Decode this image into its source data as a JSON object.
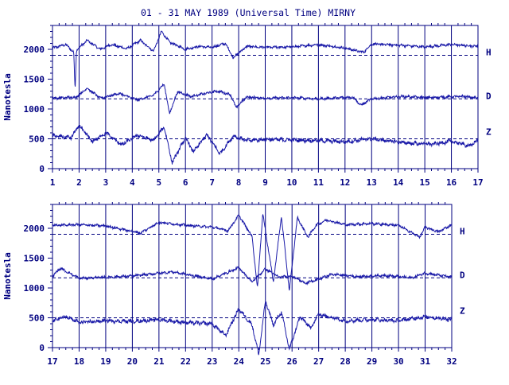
{
  "title": "01 - 31 MAY 1989 (Universal Time) MIRNY",
  "colors": {
    "ink": "#000080",
    "trace": "#1a1aa8",
    "background": "#ffffff"
  },
  "chart_data": [
    {
      "type": "line",
      "panel": "top",
      "ylabel": "Nanotesla",
      "xlabel": "",
      "x_ticks": [
        "1",
        "2",
        "3",
        "4",
        "5",
        "6",
        "7",
        "8",
        "9",
        "10",
        "11",
        "12",
        "13",
        "14",
        "15",
        "16",
        "17"
      ],
      "xlim": [
        1,
        17
      ],
      "y_ticks": [
        "0",
        "500",
        "1000",
        "1500",
        "2000"
      ],
      "ylim": [
        0,
        2400
      ],
      "grid": "vertical lines at each day",
      "series": [
        {
          "name": "H",
          "baseline": 1900,
          "segments": [
            [
              1,
              2020
            ],
            [
              1.5,
              2080
            ],
            [
              1.8,
              1950
            ],
            [
              1.85,
              1300
            ],
            [
              1.9,
              1980
            ],
            [
              2.3,
              2150
            ],
            [
              2.8,
              2000
            ],
            [
              3.2,
              2080
            ],
            [
              3.8,
              2010
            ],
            [
              4.3,
              2150
            ],
            [
              4.8,
              1970
            ],
            [
              5.1,
              2300
            ],
            [
              5.4,
              2120
            ],
            [
              6,
              2000
            ],
            [
              6.5,
              2050
            ],
            [
              7,
              2030
            ],
            [
              7.5,
              2100
            ],
            [
              7.8,
              1860
            ],
            [
              8.3,
              2050
            ],
            [
              9,
              2030
            ],
            [
              10,
              2040
            ],
            [
              11,
              2080
            ],
            [
              12,
              2020
            ],
            [
              12.7,
              1950
            ],
            [
              13,
              2090
            ],
            [
              14,
              2070
            ],
            [
              15,
              2040
            ],
            [
              16,
              2080
            ],
            [
              17,
              2050
            ]
          ]
        },
        {
          "name": "D",
          "baseline": 1170,
          "segments": [
            [
              1,
              1180
            ],
            [
              1.9,
              1200
            ],
            [
              2.3,
              1350
            ],
            [
              2.8,
              1180
            ],
            [
              3.5,
              1260
            ],
            [
              4.2,
              1150
            ],
            [
              4.8,
              1230
            ],
            [
              5.2,
              1420
            ],
            [
              5.4,
              920
            ],
            [
              5.7,
              1290
            ],
            [
              6.2,
              1210
            ],
            [
              7.2,
              1300
            ],
            [
              7.7,
              1240
            ],
            [
              7.9,
              1020
            ],
            [
              8.3,
              1200
            ],
            [
              9,
              1180
            ],
            [
              10,
              1190
            ],
            [
              11,
              1170
            ],
            [
              12.3,
              1200
            ],
            [
              12.6,
              1060
            ],
            [
              13,
              1170
            ],
            [
              14.2,
              1210
            ],
            [
              15,
              1190
            ],
            [
              16.5,
              1210
            ],
            [
              17,
              1180
            ]
          ]
        },
        {
          "name": "Z",
          "baseline": 500,
          "segments": [
            [
              1,
              550
            ],
            [
              1.7,
              520
            ],
            [
              2,
              720
            ],
            [
              2.5,
              450
            ],
            [
              3,
              600
            ],
            [
              3.6,
              400
            ],
            [
              4.2,
              560
            ],
            [
              4.8,
              470
            ],
            [
              5.2,
              700
            ],
            [
              5.5,
              100
            ],
            [
              6,
              520
            ],
            [
              6.3,
              280
            ],
            [
              6.8,
              570
            ],
            [
              7.3,
              250
            ],
            [
              7.8,
              550
            ],
            [
              8.3,
              470
            ],
            [
              9,
              490
            ],
            [
              10,
              480
            ],
            [
              11,
              470
            ],
            [
              12,
              450
            ],
            [
              13,
              500
            ],
            [
              14.3,
              430
            ],
            [
              15.3,
              410
            ],
            [
              16,
              460
            ],
            [
              16.7,
              380
            ],
            [
              17,
              480
            ]
          ]
        }
      ]
    },
    {
      "type": "line",
      "panel": "bottom",
      "ylabel": "Nanotesla",
      "xlabel": "",
      "x_ticks": [
        "17",
        "18",
        "19",
        "20",
        "21",
        "22",
        "23",
        "24",
        "25",
        "26",
        "27",
        "28",
        "29",
        "30",
        "31",
        "32"
      ],
      "xlim": [
        17,
        32
      ],
      "y_ticks": [
        "0",
        "500",
        "1000",
        "1500",
        "2000"
      ],
      "ylim": [
        0,
        2400
      ],
      "grid": "vertical lines at each day",
      "series": [
        {
          "name": "H",
          "baseline": 1900,
          "segments": [
            [
              17,
              2050
            ],
            [
              18,
              2060
            ],
            [
              19,
              2040
            ],
            [
              20.3,
              1920
            ],
            [
              21,
              2100
            ],
            [
              22,
              2050
            ],
            [
              23,
              2020
            ],
            [
              23.6,
              1960
            ],
            [
              24,
              2220
            ],
            [
              24.5,
              1860
            ],
            [
              24.7,
              1000
            ],
            [
              24.9,
              2250
            ],
            [
              25.3,
              1100
            ],
            [
              25.6,
              2200
            ],
            [
              25.9,
              950
            ],
            [
              26.2,
              2180
            ],
            [
              26.6,
              1850
            ],
            [
              26.9,
              2050
            ],
            [
              27.3,
              2140
            ],
            [
              28,
              2060
            ],
            [
              29,
              2080
            ],
            [
              30,
              2050
            ],
            [
              30.8,
              1850
            ],
            [
              31,
              2020
            ],
            [
              31.5,
              1940
            ],
            [
              32,
              2060
            ]
          ]
        },
        {
          "name": "D",
          "baseline": 1170,
          "segments": [
            [
              17,
              1200
            ],
            [
              17.3,
              1330
            ],
            [
              18,
              1160
            ],
            [
              19,
              1180
            ],
            [
              20,
              1200
            ],
            [
              21.5,
              1270
            ],
            [
              22.5,
              1190
            ],
            [
              23,
              1150
            ],
            [
              24,
              1340
            ],
            [
              24.5,
              1100
            ],
            [
              25,
              1320
            ],
            [
              25.5,
              1180
            ],
            [
              26,
              1200
            ],
            [
              26.5,
              1080
            ],
            [
              26.9,
              1130
            ],
            [
              27.5,
              1230
            ],
            [
              28.5,
              1190
            ],
            [
              29.5,
              1210
            ],
            [
              30.5,
              1170
            ],
            [
              31,
              1250
            ],
            [
              32,
              1180
            ]
          ]
        },
        {
          "name": "Z",
          "baseline": 500,
          "segments": [
            [
              17,
              450
            ],
            [
              17.5,
              520
            ],
            [
              18,
              420
            ],
            [
              19,
              450
            ],
            [
              20,
              440
            ],
            [
              21,
              470
            ],
            [
              22,
              420
            ],
            [
              23,
              400
            ],
            [
              23.5,
              200
            ],
            [
              24,
              650
            ],
            [
              24.5,
              380
            ],
            [
              24.75,
              -120
            ],
            [
              25,
              780
            ],
            [
              25.3,
              380
            ],
            [
              25.6,
              600
            ],
            [
              25.9,
              -30
            ],
            [
              26.3,
              520
            ],
            [
              26.7,
              330
            ],
            [
              27,
              560
            ],
            [
              28,
              450
            ],
            [
              29,
              470
            ],
            [
              30,
              450
            ],
            [
              31,
              520
            ],
            [
              32,
              470
            ]
          ]
        }
      ]
    }
  ]
}
